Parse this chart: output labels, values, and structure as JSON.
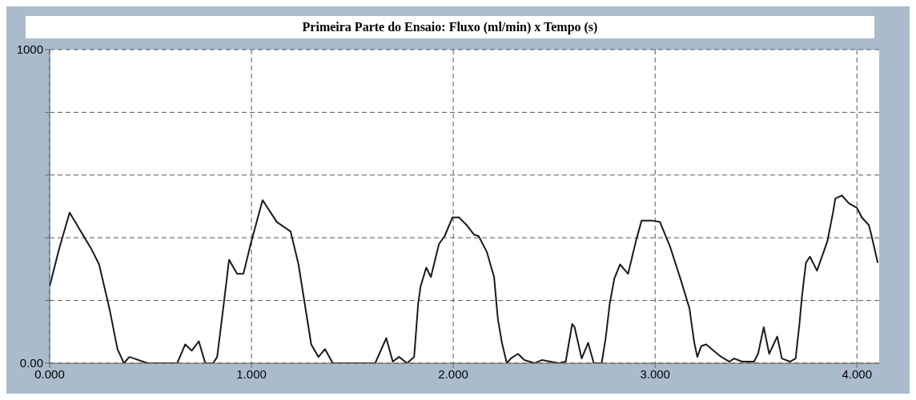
{
  "chart_data": {
    "type": "line",
    "title": "Primeira Parte do Ensaio: Fluxo (ml/min) x Tempo (s)",
    "x": [
      0,
      0.047,
      0.099,
      0.206,
      0.245,
      0.296,
      0.336,
      0.368,
      0.395,
      0.486,
      0.573,
      0.632,
      0.672,
      0.704,
      0.739,
      0.771,
      0.81,
      0.83,
      0.862,
      0.889,
      0.929,
      0.96,
      0.996,
      1.055,
      1.126,
      1.194,
      1.233,
      1.296,
      1.332,
      1.364,
      1.403,
      1.522,
      1.613,
      1.668,
      1.7,
      1.731,
      1.771,
      1.806,
      1.826,
      1.838,
      1.866,
      1.889,
      1.929,
      1.957,
      1.996,
      2.028,
      2.067,
      2.103,
      2.126,
      2.166,
      2.202,
      2.221,
      2.241,
      2.265,
      2.285,
      2.32,
      2.352,
      2.403,
      2.439,
      2.522,
      2.557,
      2.589,
      2.601,
      2.636,
      2.668,
      2.696,
      2.735,
      2.755,
      2.775,
      2.798,
      2.826,
      2.866,
      2.905,
      2.933,
      2.984,
      3.024,
      3.075,
      3.13,
      3.17,
      3.194,
      3.209,
      3.229,
      3.253,
      3.289,
      3.328,
      3.368,
      3.391,
      3.431,
      3.49,
      3.51,
      3.538,
      3.565,
      3.605,
      3.628,
      3.668,
      3.696,
      3.715,
      3.727,
      3.747,
      3.767,
      3.802,
      3.854,
      3.881,
      3.893,
      3.925,
      3.96,
      4,
      4.024,
      4.059,
      4.071,
      4.103
    ],
    "series": [
      {
        "color": "#1a1a1a",
        "values": [
          245,
          365,
          480,
          365,
          315,
          175,
          45,
          0,
          20,
          0,
          0,
          0,
          60,
          40,
          70,
          0,
          0,
          20,
          185,
          330,
          285,
          285,
          380,
          520,
          450,
          420,
          315,
          60,
          20,
          45,
          0,
          0,
          0,
          80,
          5,
          20,
          0,
          20,
          190,
          245,
          305,
          275,
          380,
          405,
          465,
          465,
          440,
          410,
          405,
          355,
          275,
          140,
          65,
          0,
          15,
          30,
          10,
          0,
          10,
          0,
          5,
          125,
          115,
          15,
          65,
          0,
          0,
          80,
          190,
          270,
          315,
          285,
          390,
          455,
          455,
          450,
          370,
          260,
          175,
          65,
          20,
          55,
          60,
          40,
          20,
          5,
          15,
          5,
          5,
          30,
          115,
          30,
          85,
          15,
          5,
          15,
          125,
          210,
          320,
          340,
          295,
          390,
          480,
          525,
          535,
          510,
          495,
          465,
          440,
          410,
          320
        ]
      }
    ],
    "xlim": [
      0,
      4.11
    ],
    "ylim": [
      0,
      1000
    ],
    "xticks": [
      {
        "value": 0,
        "label": "0.000"
      },
      {
        "value": 1,
        "label": "1.000"
      },
      {
        "value": 2,
        "label": "2.000"
      },
      {
        "value": 3,
        "label": "3.000"
      },
      {
        "value": 4,
        "label": "4.000"
      }
    ],
    "yticks": [
      {
        "value": 0,
        "label": "0.00"
      },
      {
        "value": 200,
        "label": null
      },
      {
        "value": 400,
        "label": null
      },
      {
        "value": 600,
        "label": null
      },
      {
        "value": 800,
        "label": null
      },
      {
        "value": 1000,
        "label": "1000"
      }
    ],
    "grid": true,
    "line_style": "solid"
  }
}
